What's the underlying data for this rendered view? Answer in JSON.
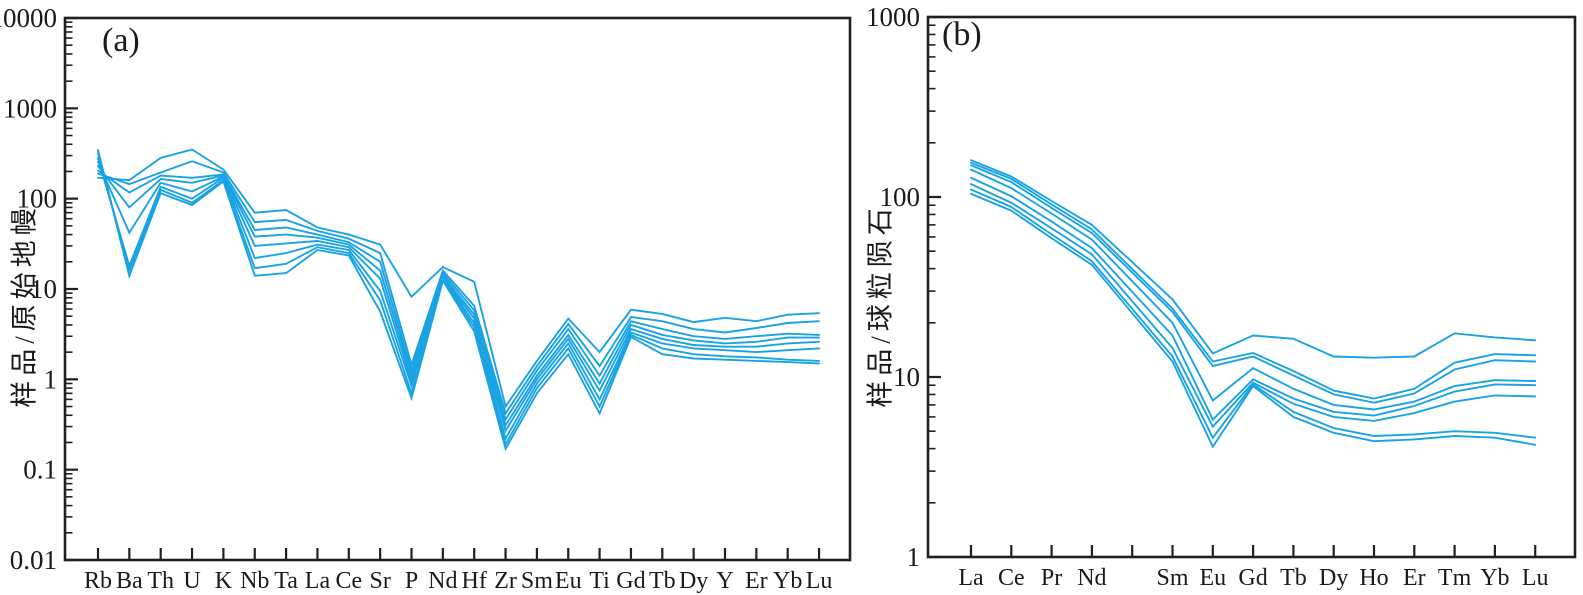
{
  "figure": {
    "line_color": "#1AA3E3",
    "axis_color": "#231F20",
    "background": "#ffffff"
  },
  "chart_data": [
    {
      "type": "line",
      "label": "(a)",
      "ylabel": "样品/原始地幔",
      "log_y": true,
      "ylim": [
        0.01,
        10000
      ],
      "grid": false,
      "legend": "none",
      "y_ticks": [
        "10000",
        "1000",
        "100",
        "10",
        "1",
        "0.1",
        "0.01"
      ],
      "categories": [
        "Rb",
        "Ba",
        "Th",
        "U",
        "K",
        "Nb",
        "Ta",
        "La",
        "Ce",
        "Sr",
        "P",
        "Nd",
        "Hf",
        "Zr",
        "Sm",
        "Eu",
        "Ti",
        "Gd",
        "Tb",
        "Dy",
        "Y",
        "Er",
        "Yb",
        "Lu"
      ],
      "series": [
        {
          "values": [
            170,
            160,
            283,
            350,
            210,
            70,
            75,
            48,
            40,
            31,
            8.2,
            17.5,
            12,
            0.5,
            1.6,
            4.7,
            2.0,
            5.9,
            5.3,
            4.3,
            4.8,
            4.4,
            5.2,
            5.4
          ]
        },
        {
          "values": [
            190,
            145,
            195,
            260,
            195,
            55,
            58,
            44,
            36,
            25,
            1.45,
            16,
            6.5,
            0.42,
            1.4,
            4.1,
            1.4,
            4.9,
            4.4,
            3.6,
            3.3,
            3.7,
            4.2,
            4.4
          ]
        },
        {
          "values": [
            205,
            117,
            180,
            170,
            185,
            45,
            48,
            40,
            33,
            20,
            1.25,
            15,
            5.8,
            0.36,
            1.25,
            3.6,
            1.1,
            4.4,
            3.6,
            3.0,
            2.8,
            3.0,
            3.2,
            3.1
          ]
        },
        {
          "values": [
            230,
            80,
            165,
            150,
            180,
            38,
            40,
            37,
            31,
            16,
            1.1,
            14,
            5.2,
            0.31,
            1.1,
            3.1,
            0.9,
            4.0,
            3.1,
            2.7,
            2.5,
            2.6,
            2.9,
            2.9
          ]
        },
        {
          "values": [
            255,
            42,
            150,
            120,
            175,
            30,
            32,
            34,
            29,
            13,
            0.95,
            13.5,
            4.7,
            0.27,
            1.0,
            2.8,
            0.75,
            3.6,
            2.8,
            2.4,
            2.3,
            2.3,
            2.5,
            2.6
          ]
        },
        {
          "values": [
            280,
            18,
            135,
            100,
            170,
            22,
            25,
            31,
            27,
            9.5,
            0.85,
            13,
            4.2,
            0.22,
            0.9,
            2.5,
            0.6,
            3.3,
            2.5,
            2.2,
            2.1,
            2.0,
            2.1,
            2.2
          ]
        },
        {
          "values": [
            320,
            16,
            125,
            90,
            160,
            17,
            19,
            29,
            25,
            7.5,
            0.7,
            12.7,
            3.8,
            0.19,
            0.8,
            2.2,
            0.5,
            3.1,
            2.2,
            1.9,
            1.8,
            1.75,
            1.65,
            1.6
          ]
        },
        {
          "values": [
            345,
            14,
            115,
            85,
            155,
            14,
            15,
            27,
            23.5,
            5.6,
            0.62,
            12.4,
            3.4,
            0.17,
            0.7,
            1.9,
            0.42,
            2.95,
            1.9,
            1.7,
            1.65,
            1.6,
            1.55,
            1.5
          ]
        }
      ]
    },
    {
      "type": "line",
      "label": "(b)",
      "ylabel": "样品/球粒陨石",
      "log_y": true,
      "ylim": [
        1,
        1000
      ],
      "grid": false,
      "legend": "none",
      "y_ticks": [
        "1000",
        "100",
        "10",
        "1"
      ],
      "categories": [
        "La",
        "Ce",
        "Pr",
        "Nd",
        "",
        "Sm",
        "Eu",
        "Gd",
        "Tb",
        "Dy",
        "Ho",
        "Er",
        "Tm",
        "Yb",
        "Lu"
      ],
      "series": [
        {
          "values": [
            160,
            130,
            95,
            70,
            null,
            27,
            13.5,
            17,
            16.3,
            13,
            12.8,
            13,
            17.5,
            16.6,
            16
          ]
        },
        {
          "values": [
            155,
            126,
            91,
            66,
            null,
            24,
            12.2,
            13.6,
            10.8,
            8.4,
            7.6,
            8.6,
            12,
            13.4,
            13.2
          ]
        },
        {
          "values": [
            150,
            121,
            87,
            63,
            null,
            23,
            11.5,
            13.0,
            10.2,
            8.0,
            7.2,
            8.1,
            11,
            12.4,
            12.2
          ]
        },
        {
          "values": [
            142,
            112,
            81,
            58,
            null,
            20,
            7.4,
            11.2,
            8.6,
            7.0,
            6.6,
            7.3,
            8.9,
            9.6,
            9.5
          ]
        },
        {
          "values": [
            128,
            101,
            73,
            52,
            null,
            17,
            5.8,
            9.7,
            7.6,
            6.4,
            6.1,
            6.9,
            8.3,
            9.1,
            9.0
          ]
        },
        {
          "values": [
            118,
            93,
            67,
            48,
            null,
            14.5,
            5.3,
            9.3,
            7.1,
            6.0,
            5.7,
            6.3,
            7.3,
            7.9,
            7.8
          ]
        },
        {
          "values": [
            110,
            88,
            62,
            44,
            null,
            13,
            4.6,
            9.1,
            6.4,
            5.2,
            4.7,
            4.8,
            5.0,
            4.9,
            4.6
          ]
        },
        {
          "values": [
            104,
            84,
            59,
            42,
            null,
            12.2,
            4.1,
            8.9,
            6.0,
            4.9,
            4.4,
            4.5,
            4.7,
            4.6,
            4.2
          ]
        }
      ]
    }
  ]
}
